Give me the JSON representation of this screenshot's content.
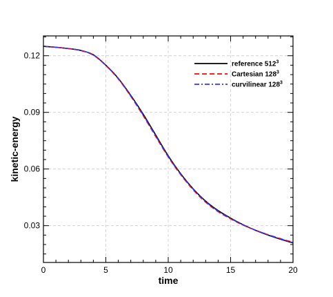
{
  "chart_data": {
    "type": "line",
    "xlabel": "time",
    "ylabel": "kinetic-energy",
    "xlim": [
      0,
      20
    ],
    "ylim": [
      0.0105,
      0.1305
    ],
    "x_ticks": [
      0,
      5,
      10,
      15,
      20
    ],
    "y_ticks": [
      0.03,
      0.06,
      0.09,
      0.12
    ],
    "y_tick_labels": [
      "0.03",
      "0.06",
      "0.09",
      "0.12"
    ],
    "grid": true,
    "legend_position": "top-right",
    "series": [
      {
        "name": "reference 512",
        "name_sup": "3",
        "color": "#000000",
        "dash": "solid",
        "x": [
          0,
          1,
          2,
          3,
          4,
          5,
          6,
          7,
          8,
          9,
          10,
          11,
          12,
          13,
          14,
          15,
          16,
          17,
          18,
          19,
          20
        ],
        "y": [
          0.125,
          0.1245,
          0.1238,
          0.1228,
          0.1205,
          0.115,
          0.108,
          0.099,
          0.089,
          0.078,
          0.067,
          0.0575,
          0.0495,
          0.043,
          0.038,
          0.034,
          0.0305,
          0.0275,
          0.025,
          0.0228,
          0.0208
        ]
      },
      {
        "name": "Cartesian 128",
        "name_sup": "3",
        "color": "#ff0000",
        "dash": "dashed",
        "x": [
          0,
          1,
          2,
          3,
          4,
          5,
          6,
          7,
          8,
          9,
          10,
          11,
          12,
          13,
          14,
          15,
          16,
          17,
          18,
          19,
          20
        ],
        "y": [
          0.125,
          0.1245,
          0.1238,
          0.1227,
          0.1203,
          0.1148,
          0.1077,
          0.0985,
          0.0882,
          0.0772,
          0.0664,
          0.057,
          0.049,
          0.0424,
          0.0374,
          0.0336,
          0.0303,
          0.0276,
          0.0252,
          0.0231,
          0.0212
        ]
      },
      {
        "name": "curvilinear 128",
        "name_sup": "3",
        "color": "#3333ff",
        "dash": "dashdot",
        "x": [
          0,
          1,
          2,
          3,
          4,
          5,
          6,
          7,
          8,
          9,
          10,
          11,
          12,
          13,
          14,
          15,
          16,
          17,
          18,
          19,
          20
        ],
        "y": [
          0.125,
          0.1245,
          0.1238,
          0.1228,
          0.1204,
          0.1149,
          0.1078,
          0.0987,
          0.0885,
          0.0775,
          0.0666,
          0.0572,
          0.0493,
          0.0427,
          0.0377,
          0.0338,
          0.0304,
          0.0276,
          0.0252,
          0.023,
          0.021
        ]
      }
    ]
  }
}
